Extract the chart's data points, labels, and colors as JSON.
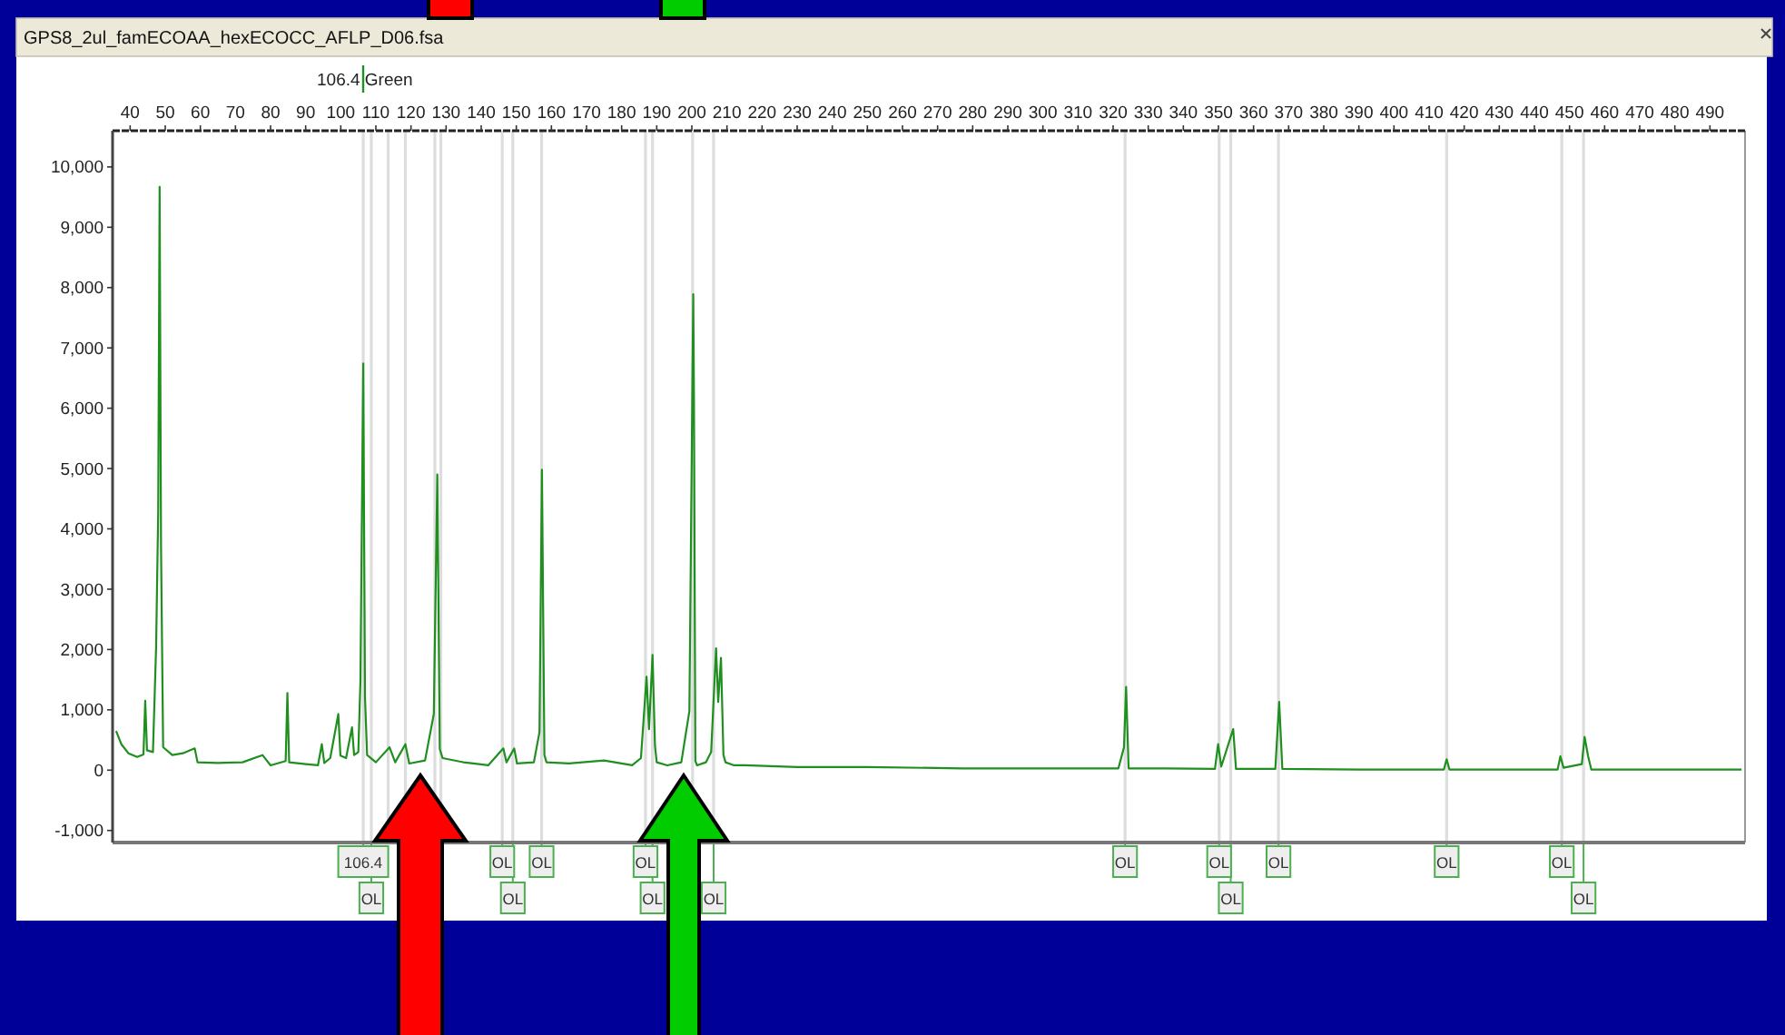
{
  "chart_data": {
    "type": "line",
    "title": "GPS8_2ul_famECOAA_hexECOCC_AFLP_D06.fsa",
    "xlim": [
      35,
      500
    ],
    "ylim": [
      -1200,
      10600
    ],
    "xticks": [
      40,
      50,
      60,
      70,
      80,
      90,
      100,
      110,
      120,
      130,
      140,
      150,
      160,
      170,
      180,
      190,
      200,
      210,
      220,
      230,
      240,
      250,
      260,
      270,
      280,
      290,
      300,
      310,
      320,
      330,
      340,
      350,
      360,
      370,
      380,
      390,
      400,
      410,
      420,
      430,
      440,
      450,
      460,
      470,
      480,
      490
    ],
    "yticks": [
      {
        "value": -1000,
        "label": "-1,000"
      },
      0,
      {
        "value": 1000,
        "label": "1,000"
      },
      {
        "value": 2000,
        "label": "2,000"
      },
      {
        "value": 3000,
        "label": "3,000"
      },
      {
        "value": 4000,
        "label": "4,000"
      },
      {
        "value": 5000,
        "label": "5,000"
      },
      {
        "value": 6000,
        "label": "6,000"
      },
      {
        "value": 7000,
        "label": "7,000"
      },
      {
        "value": 8000,
        "label": "8,000"
      },
      {
        "value": 9000,
        "label": "9,000"
      },
      {
        "value": 10000,
        "label": "10,000"
      }
    ],
    "series": [
      {
        "color": "#1f8f1f",
        "x": [
          36,
          37.5,
          39.5,
          42,
          43.8,
          44.3,
          44.8,
          46.5,
          47.4,
          48,
          48.4,
          48.8,
          49.4,
          52,
          55,
          58.4,
          59.2,
          65,
          72,
          77.7,
          80,
          84.3,
          84.8,
          85.3,
          90,
          93.5,
          94.6,
          95.3,
          97,
          99.3,
          99.9,
          101.5,
          103.2,
          103.8,
          105,
          105.6,
          106.4,
          106.9,
          107.5,
          110,
          113.9,
          115.5,
          118.4,
          119.5,
          124,
          126.5,
          127.5,
          128.2,
          129,
          135,
          142,
          146.3,
          147.2,
          149.4,
          150.2,
          155,
          156.6,
          157.3,
          158,
          158.6,
          165,
          175,
          183,
          185.5,
          187.1,
          187.8,
          188.8,
          189.5,
          190,
          193,
          197,
          199.3,
          200.4,
          200.6,
          201,
          201.5,
          204,
          205.5,
          206.9,
          207.5,
          208.3,
          209,
          209.6,
          212,
          215,
          230,
          250,
          277,
          300,
          321.5,
          323.1,
          323.7,
          324.4,
          335,
          349,
          349.9,
          350.8,
          354.2,
          355,
          366.2,
          367.3,
          368.2,
          390,
          414.2,
          415,
          415.8,
          446.6,
          447.4,
          448.3,
          453.5,
          454.3,
          455.3,
          456.2,
          475,
          499
        ],
        "values": [
          650,
          430,
          280,
          220,
          260,
          1150,
          330,
          300,
          2040,
          4300,
          9670,
          3700,
          380,
          250,
          280,
          360,
          130,
          120,
          130,
          250,
          80,
          150,
          1280,
          130,
          100,
          80,
          430,
          120,
          200,
          930,
          240,
          200,
          710,
          250,
          300,
          1480,
          6740,
          1200,
          250,
          130,
          380,
          130,
          430,
          110,
          160,
          930,
          4900,
          350,
          200,
          130,
          80,
          360,
          130,
          360,
          110,
          130,
          630,
          4980,
          250,
          130,
          110,
          160,
          80,
          200,
          1550,
          680,
          1910,
          400,
          130,
          80,
          130,
          980,
          7890,
          6200,
          150,
          80,
          130,
          300,
          2020,
          1130,
          1860,
          250,
          130,
          80,
          80,
          50,
          50,
          30,
          30,
          30,
          380,
          1380,
          30,
          30,
          20,
          430,
          60,
          680,
          20,
          20,
          1130,
          20,
          10,
          10,
          180,
          10,
          10,
          230,
          40,
          100,
          550,
          230,
          10,
          10,
          10
        ]
      }
    ],
    "ref_lines": [
      {
        "axis": "x",
        "value": 106.4,
        "label": "106.4",
        "color": "#dddddd"
      },
      {
        "axis": "x",
        "value": 108.7,
        "label": "OL",
        "color": "#dddddd"
      },
      {
        "axis": "x",
        "value": 113.5,
        "color": "#dddddd"
      },
      {
        "axis": "x",
        "value": 118.4,
        "color": "#dddddd"
      },
      {
        "axis": "x",
        "value": 126.8,
        "color": "#dddddd"
      },
      {
        "axis": "x",
        "value": 128.5,
        "color": "#dddddd"
      },
      {
        "axis": "x",
        "value": 146,
        "label": "OL",
        "color": "#dddddd"
      },
      {
        "axis": "x",
        "value": 149,
        "label": "OL",
        "color": "#dddddd"
      },
      {
        "axis": "x",
        "value": 157.2,
        "label": "OL",
        "color": "#dddddd"
      },
      {
        "axis": "x",
        "value": 186.8,
        "label": "OL",
        "color": "#dddddd"
      },
      {
        "axis": "x",
        "value": 188.8,
        "label": "OL",
        "color": "#dddddd"
      },
      {
        "axis": "x",
        "value": 200.2,
        "color": "#dddddd"
      },
      {
        "axis": "x",
        "value": 206.2,
        "label": "OL",
        "color": "#dddddd"
      },
      {
        "axis": "x",
        "value": 323.4,
        "label": "OL",
        "color": "#dddddd"
      },
      {
        "axis": "x",
        "value": 350.2,
        "label": "OL",
        "color": "#dddddd"
      },
      {
        "axis": "x",
        "value": 353.5,
        "label": "OL",
        "color": "#dddddd"
      },
      {
        "axis": "x",
        "value": 367.1,
        "label": "OL",
        "color": "#dddddd"
      },
      {
        "axis": "x",
        "value": 415,
        "label": "OL",
        "color": "#dddddd"
      },
      {
        "axis": "x",
        "value": 447.8,
        "label": "OL",
        "color": "#dddddd"
      },
      {
        "axis": "x",
        "value": 454,
        "label": "OL",
        "color": "#dddddd"
      }
    ],
    "annotations": [
      "106.4 Green"
    ]
  }
}
